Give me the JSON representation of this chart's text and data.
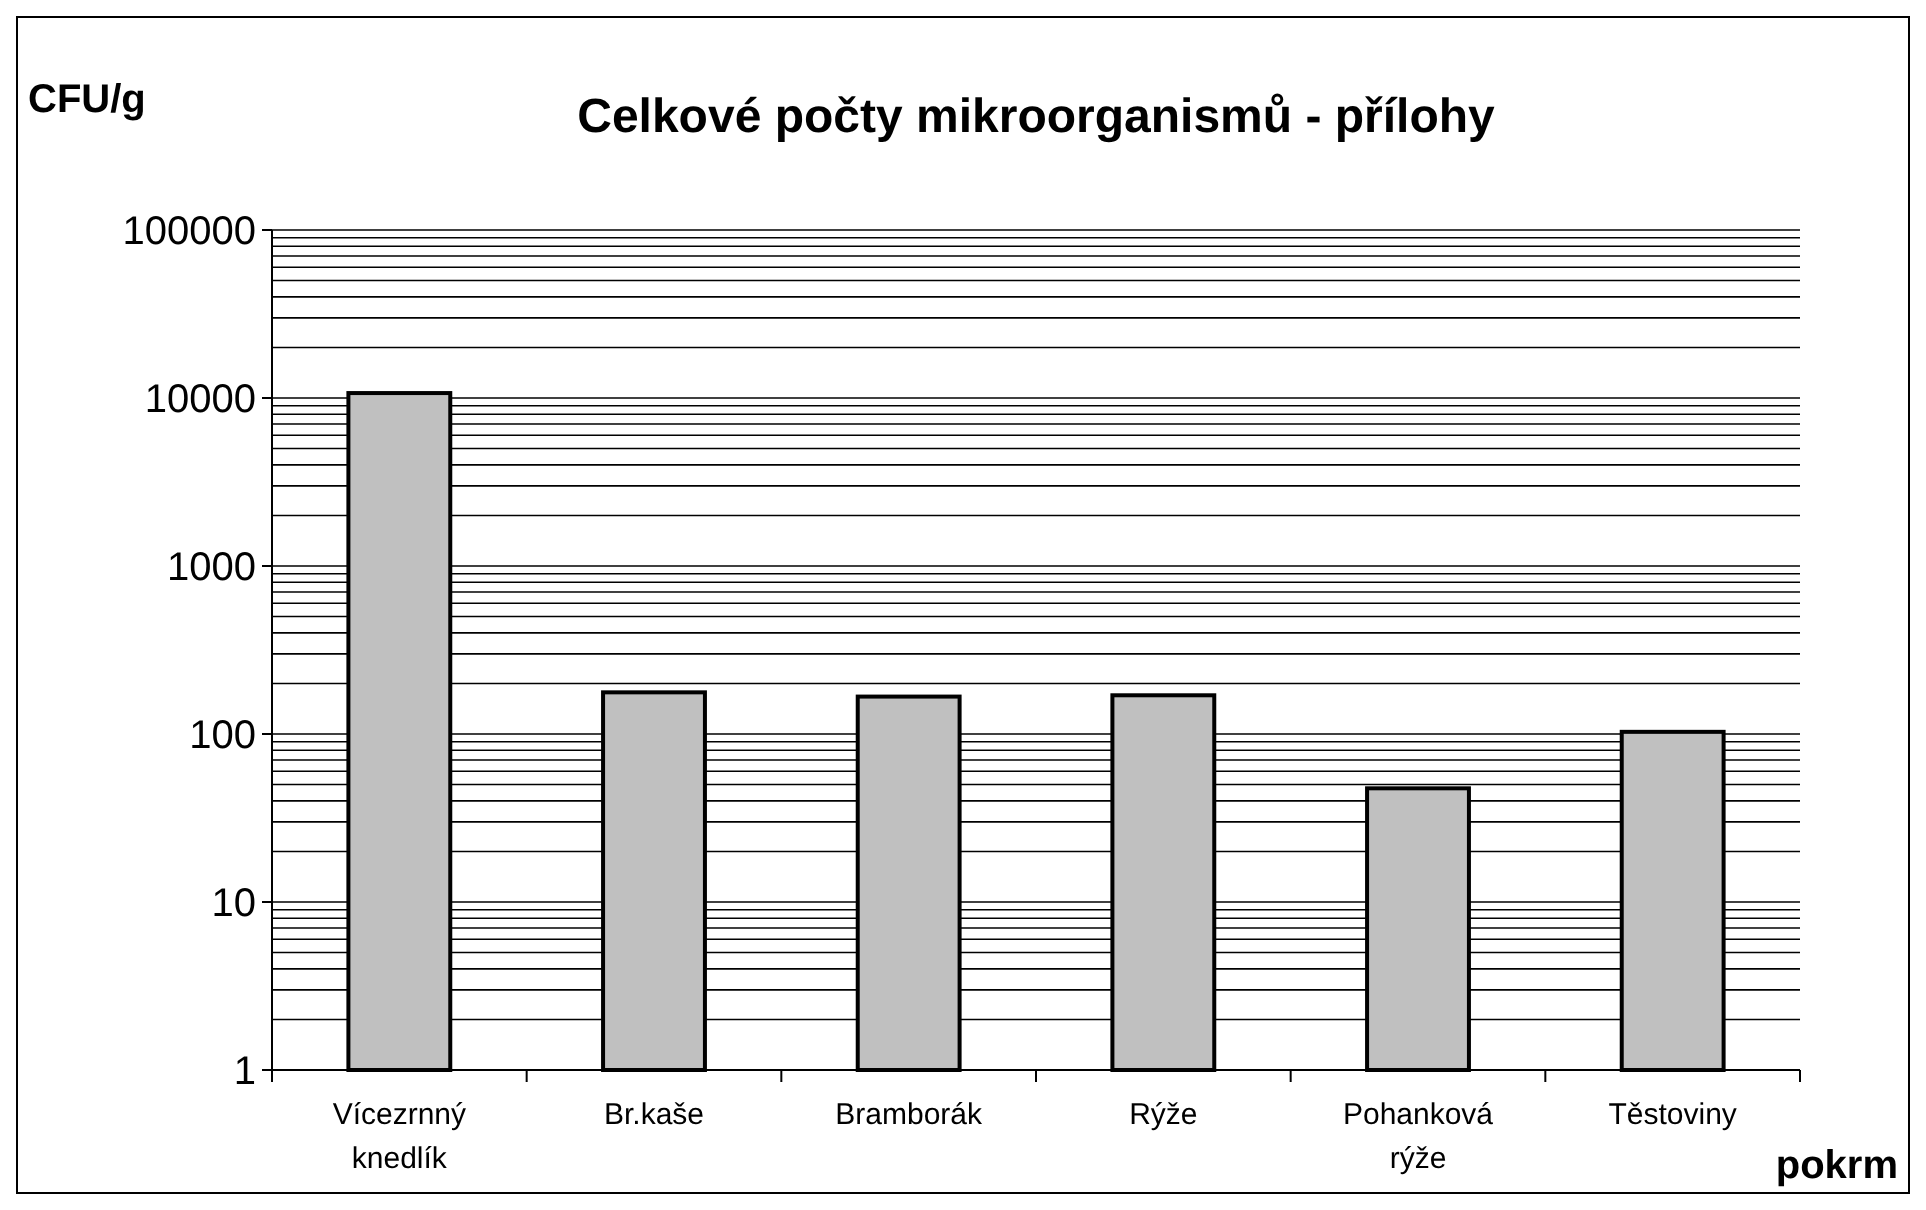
{
  "chart_data": {
    "type": "bar",
    "title": "Celkové počty mikroorganismů - přílohy",
    "ylabel": "CFU/g",
    "xlabel": "pokrm",
    "categories": [
      "Vícezrnný knedlík",
      "Br.kaše",
      "Bramborák",
      "Rýže",
      "Pohanková rýže",
      "Těstoviny"
    ],
    "values": [
      10700,
      177,
      167,
      170,
      47.5,
      103
    ],
    "color": "#c0c0c0",
    "log": true,
    "ylim": [
      1,
      100000
    ],
    "yticks": [
      1,
      10,
      100,
      1000,
      10000,
      100000
    ],
    "grid": "y"
  }
}
